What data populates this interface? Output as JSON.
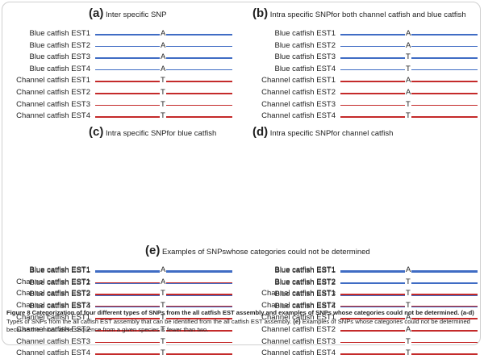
{
  "panels": [
    {
      "letter": "(a)",
      "title": "Inter  specific SNP",
      "rows": [
        {
          "label": "Blue catfish EST1",
          "species": "blue",
          "base": "A"
        },
        {
          "label": "Blue catfish EST2",
          "species": "blue",
          "base": "A"
        },
        {
          "label": "Blue catfish EST3",
          "species": "blue",
          "base": "A"
        },
        {
          "label": "Blue catfish EST4",
          "species": "blue",
          "base": "A"
        },
        {
          "label": "Channel catfish EST1",
          "species": "channel",
          "base": "T"
        },
        {
          "label": "Channel catfish EST2",
          "species": "channel",
          "base": "T"
        },
        {
          "label": "Channel catfish EST3",
          "species": "channel",
          "base": "T"
        },
        {
          "label": "Channel catfish EST4",
          "species": "channel",
          "base": "T"
        }
      ]
    },
    {
      "letter": "(b)",
      "title": "Intra  specific SNPfor both channel catfish and blue catfish",
      "rows": [
        {
          "label": "Blue catfish EST1",
          "species": "blue",
          "base": "A"
        },
        {
          "label": "Blue catfish EST2",
          "species": "blue",
          "base": "A"
        },
        {
          "label": "Blue catfish EST3",
          "species": "blue",
          "base": "T"
        },
        {
          "label": "Blue catfish EST4",
          "species": "blue",
          "base": "T"
        },
        {
          "label": "Channel catfish EST1",
          "species": "channel",
          "base": "A"
        },
        {
          "label": "Channel catfish EST2",
          "species": "channel",
          "base": "A"
        },
        {
          "label": "Channel catfish EST3",
          "species": "channel",
          "base": "T"
        },
        {
          "label": "Channel catfish EST4",
          "species": "channel",
          "base": "T"
        }
      ]
    },
    {
      "letter": "(c)",
      "title": "Intra  specific SNPfor blue catfish",
      "rows": [
        {
          "label": "Blue catfish EST1",
          "species": "blue",
          "base": "A"
        },
        {
          "label": "Blue catfish EST2",
          "species": "blue",
          "base": "A"
        },
        {
          "label": "Blue catfish EST3",
          "species": "blue",
          "base": "T"
        },
        {
          "label": "Blue catfish EST4",
          "species": "blue",
          "base": "T"
        },
        {
          "label": "Channel catfish EST1",
          "species": "channel",
          "base": "T"
        },
        {
          "label": "Channel catfish EST2",
          "species": "channel",
          "base": "T"
        },
        {
          "label": "Channel catfish EST3",
          "species": "channel",
          "base": "T"
        },
        {
          "label": "Channel catfish EST4",
          "species": "channel",
          "base": "T"
        }
      ]
    },
    {
      "letter": "(d)",
      "title": "Intra  specific SNPfor channel catfish",
      "rows": [
        {
          "label": "Blue catfish EST1",
          "species": "blue",
          "base": "A"
        },
        {
          "label": "Blue catfish EST2",
          "species": "blue",
          "base": "A"
        },
        {
          "label": "Blue catfish EST3",
          "species": "blue",
          "base": "A"
        },
        {
          "label": "Blue catfish EST4",
          "species": "blue",
          "base": "A"
        },
        {
          "label": "Channel catfish EST1",
          "species": "channel",
          "base": "A"
        },
        {
          "label": "Channel catfish EST2",
          "species": "channel",
          "base": "A"
        },
        {
          "label": "Channel catfish EST3",
          "species": "channel",
          "base": "T"
        },
        {
          "label": "Channel catfish EST4",
          "species": "channel",
          "base": "T"
        }
      ]
    },
    {
      "letter": "",
      "title": "",
      "rows": [
        {
          "label": "Blue catfish EST1",
          "species": "blue",
          "base": "A"
        },
        {
          "label": "Channel catfish EST1",
          "species": "channel",
          "base": "A"
        },
        {
          "label": "Channel catfish EST2",
          "species": "channel",
          "base": "T"
        },
        {
          "label": "Channel catfish EST3",
          "species": "channel",
          "base": "T"
        }
      ]
    },
    {
      "letter": "",
      "title": "",
      "rows": [
        {
          "label": "Blue catfish EST1",
          "species": "blue",
          "base": "A"
        },
        {
          "label": "Blue catfish EST2",
          "species": "blue",
          "base": "T"
        },
        {
          "label": "Channel catfish EST1",
          "species": "channel",
          "base": "T"
        },
        {
          "label": "Channel catfish EST2",
          "species": "channel",
          "base": "T"
        }
      ]
    }
  ],
  "section_e": {
    "letter": "(e)",
    "title": "Examples of SNPswhose categories could not be determined"
  },
  "caption": {
    "head": "Figure 8 Categorization of four different types of SNPs from the all catfish EST assembly and examples of SNPs whose categories could not be determined.",
    "part_ad": "(a-d)",
    "text_ad": "Types of SNPs from the all catfish EST assembly that can be identified from the all catfish EST assembly.",
    "part_e": "(e)",
    "text_e": "Examples of SNPs whose categories could not be determined because the minor allele sequence from a given species is fewer than two."
  },
  "colors": {
    "blue": "#3f6cc4",
    "channel": "#c42a2a"
  }
}
